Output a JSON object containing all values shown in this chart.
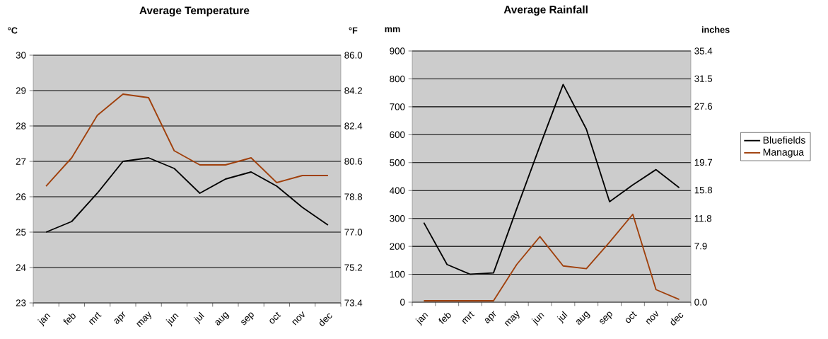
{
  "chart_data": [
    {
      "type": "line",
      "title": "Average Temperature",
      "ylabel": "°C",
      "y2label": "°F",
      "categories": [
        "jan",
        "feb",
        "mrt",
        "apr",
        "may",
        "jun",
        "jul",
        "aug",
        "sep",
        "oct",
        "nov",
        "dec"
      ],
      "series": [
        {
          "color": "#000000",
          "values": [
            25.0,
            25.3,
            26.1,
            27.0,
            27.1,
            26.8,
            26.1,
            26.5,
            26.7,
            26.3,
            25.7,
            25.2
          ]
        },
        {
          "color": "#a0400c",
          "values": [
            26.3,
            27.1,
            28.3,
            28.9,
            28.8,
            27.3,
            26.9,
            26.9,
            27.1,
            26.4,
            26.6,
            26.6
          ]
        }
      ],
      "ylim": [
        23,
        30
      ],
      "yticks": [
        23,
        24,
        25,
        26,
        27,
        28,
        29,
        30
      ],
      "y2lim": [
        73.4,
        86.0
      ],
      "y2ticks": [
        {
          "value": 73.4,
          "label": "73.4"
        },
        {
          "value": 75.2,
          "label": "75.2"
        },
        {
          "value": 77.0,
          "label": "77.0"
        },
        {
          "value": 78.8,
          "label": "78.8"
        },
        {
          "value": 80.6,
          "label": "80.6"
        },
        {
          "value": 82.4,
          "label": "82.4"
        },
        {
          "value": 84.2,
          "label": "84.2"
        },
        {
          "value": 86.0,
          "label": "86.0"
        }
      ],
      "grid": "y",
      "legend": false
    },
    {
      "type": "line",
      "title": "Average Rainfall",
      "ylabel": "mm",
      "y2label": "inches",
      "categories": [
        "jan",
        "feb",
        "mrt",
        "apr",
        "may",
        "jun",
        "jul",
        "aug",
        "sep",
        "oct",
        "nov",
        "dec"
      ],
      "series": [
        {
          "name": "Bluefields",
          "color": "#000000",
          "values": [
            285,
            135,
            100,
            105,
            335,
            560,
            780,
            620,
            360,
            420,
            475,
            410
          ]
        },
        {
          "name": "Managua",
          "color": "#a0400c",
          "values": [
            5,
            5,
            5,
            5,
            135,
            235,
            130,
            120,
            215,
            315,
            45,
            10
          ]
        }
      ],
      "ylim": [
        0,
        900
      ],
      "yticks": [
        0,
        100,
        200,
        300,
        400,
        500,
        600,
        700,
        800,
        900
      ],
      "y2lim": [
        0,
        35.4
      ],
      "y2ticks": [
        {
          "value": 0,
          "label": "0.0"
        },
        7.9,
        11.8,
        15.8,
        19.7,
        27.6,
        31.5,
        35.4
      ],
      "grid": "y",
      "legend": "right"
    }
  ]
}
